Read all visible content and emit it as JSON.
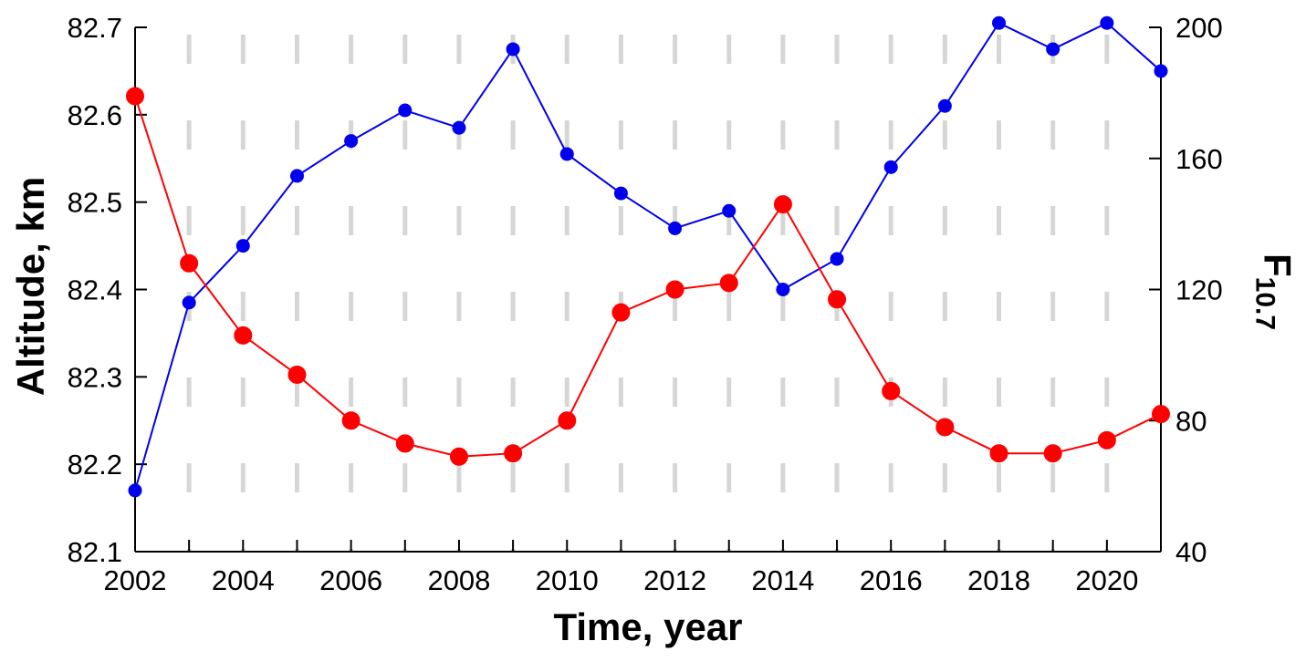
{
  "chart_data": {
    "type": "line",
    "title": "",
    "xlabel": "Time, year",
    "ylabel_left": "Altitude, km",
    "ylabel_right": {
      "main": "F",
      "sub": "10.7"
    },
    "x": [
      2002,
      2003,
      2004,
      2005,
      2006,
      2007,
      2008,
      2009,
      2010,
      2011,
      2012,
      2013,
      2014,
      2015,
      2016,
      2017,
      2018,
      2019,
      2020,
      2021
    ],
    "x_axis": {
      "min": 2002,
      "max": 2021,
      "tick_years": [
        2002,
        2003,
        2004,
        2005,
        2006,
        2007,
        2008,
        2009,
        2010,
        2011,
        2012,
        2013,
        2014,
        2015,
        2016,
        2017,
        2018,
        2019,
        2020,
        2021
      ],
      "label_years": [
        "2002",
        "2004",
        "2006",
        "2008",
        "2010",
        "2012",
        "2014",
        "2016",
        "2018",
        "2020"
      ],
      "label_year_values": [
        2002,
        2004,
        2006,
        2008,
        2010,
        2012,
        2014,
        2016,
        2018,
        2020
      ]
    },
    "left_axis": {
      "min": 82.1,
      "max": 82.7,
      "ticks": [
        82.1,
        82.2,
        82.3,
        82.4,
        82.5,
        82.6,
        82.7
      ],
      "tick_labels": [
        "82.1",
        "82.2",
        "82.3",
        "82.4",
        "82.5",
        "82.6",
        "82.7"
      ]
    },
    "right_axis": {
      "min": 40,
      "max": 200,
      "ticks": [
        40,
        80,
        120,
        160,
        200
      ],
      "tick_labels": [
        "40",
        "80",
        "120",
        "160",
        "200"
      ]
    },
    "grid": {
      "x_years": [
        2003,
        2004,
        2005,
        2006,
        2007,
        2008,
        2009,
        2010,
        2011,
        2012,
        2013,
        2014,
        2015,
        2016,
        2017,
        2018,
        2019,
        2020
      ],
      "style": "dashed",
      "color": "#d6d6d6"
    },
    "series": [
      {
        "name": "altitude",
        "axis": "left",
        "color": "#0000ee",
        "marker_radius": 7,
        "line_width": 2,
        "values": [
          82.17,
          82.385,
          82.45,
          82.53,
          82.57,
          82.605,
          82.585,
          82.675,
          82.555,
          82.51,
          82.47,
          82.49,
          82.4,
          82.435,
          82.54,
          82.61,
          82.705,
          82.675,
          82.705,
          82.65
        ]
      },
      {
        "name": "f107",
        "axis": "right",
        "color": "#ff0000",
        "marker_radius": 9.5,
        "line_width": 2,
        "values": [
          179,
          128,
          106,
          94,
          80,
          73,
          69,
          70,
          80,
          113,
          120,
          122,
          146,
          117,
          89,
          78,
          70,
          70,
          74,
          82
        ]
      }
    ],
    "axis_color": "#000000",
    "tick_label_color": "#000000"
  }
}
